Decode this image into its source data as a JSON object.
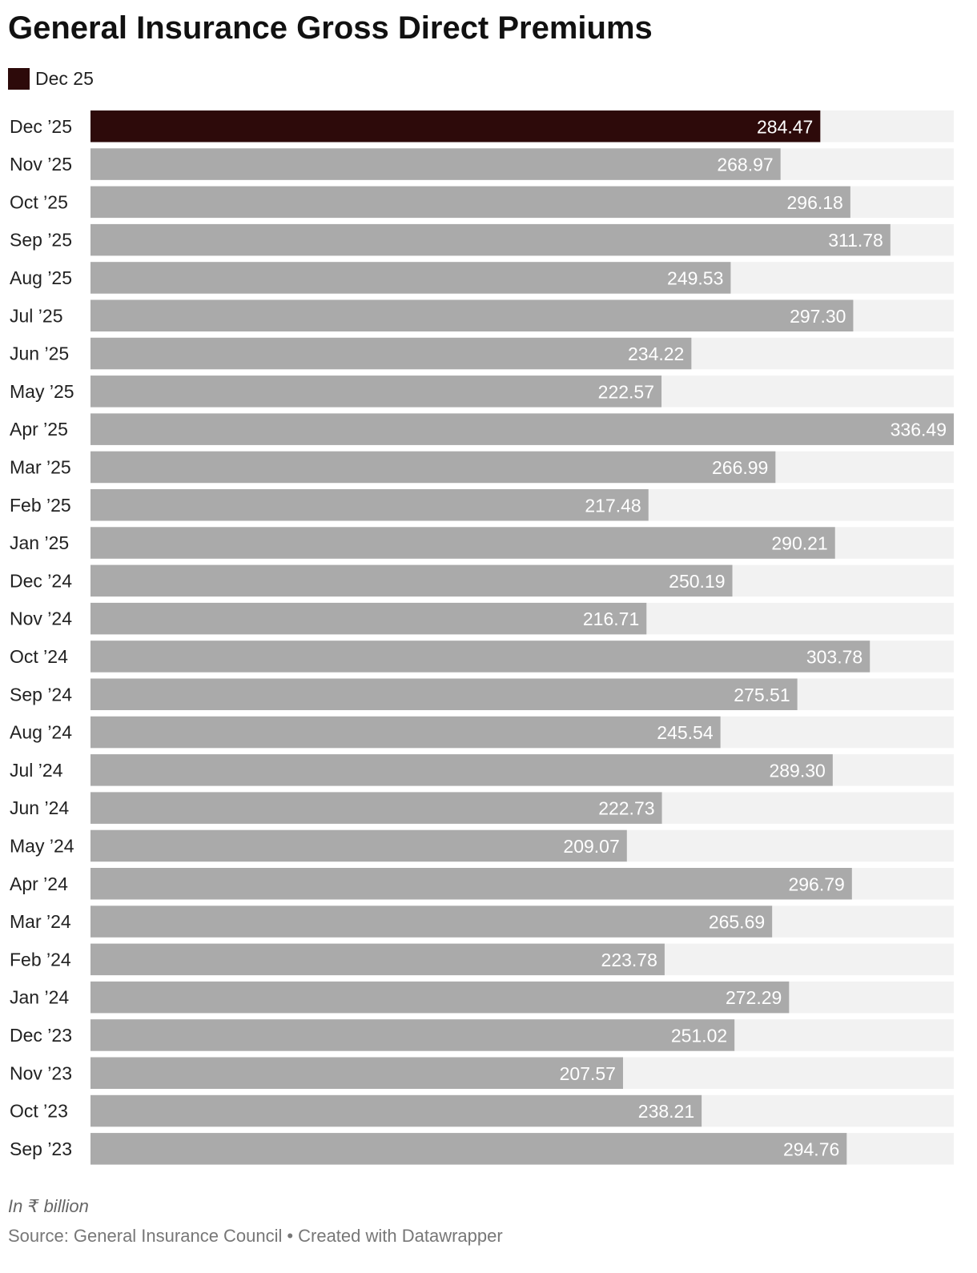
{
  "colors": {
    "highlight": "#2d0a0a",
    "bar": "#aaaaaa",
    "track": "#f2f2f2",
    "value_text": "#ffffff",
    "category_text": "#222222"
  },
  "chart_data": {
    "type": "bar",
    "orientation": "horizontal",
    "title": "General Insurance Gross Direct Premiums",
    "legend": {
      "label": "Dec 25",
      "position": "top-left"
    },
    "highlight_category": "Dec ’25",
    "categories": [
      "Dec ’25",
      "Nov ’25",
      "Oct ’25",
      "Sep ’25",
      "Aug ’25",
      "Jul ’25",
      "Jun ’25",
      "May ’25",
      "Apr ’25",
      "Mar ’25",
      "Feb ’25",
      "Jan ’25",
      "Dec ’24",
      "Nov ’24",
      "Oct ’24",
      "Sep ’24",
      "Aug ’24",
      "Jul ’24",
      "Jun ’24",
      "May ’24",
      "Apr ’24",
      "Mar ’24",
      "Feb ’24",
      "Jan ’24",
      "Dec ’23",
      "Nov ’23",
      "Oct ’23",
      "Sep ’23"
    ],
    "values": [
      284.47,
      268.97,
      296.18,
      311.78,
      249.53,
      297.3,
      234.22,
      222.57,
      336.49,
      266.99,
      217.48,
      290.21,
      250.19,
      216.71,
      303.78,
      275.51,
      245.54,
      289.3,
      222.73,
      209.07,
      296.79,
      265.69,
      223.78,
      272.29,
      251.02,
      207.57,
      238.21,
      294.76
    ],
    "value_labels": [
      "284.47",
      "268.97",
      "296.18",
      "311.78",
      "249.53",
      "297.30",
      "234.22",
      "222.57",
      "336.49",
      "266.99",
      "217.48",
      "290.21",
      "250.19",
      "216.71",
      "303.78",
      "275.51",
      "245.54",
      "289.30",
      "222.73",
      "209.07",
      "296.79",
      "265.69",
      "223.78",
      "272.29",
      "251.02",
      "207.57",
      "238.21",
      "294.76"
    ],
    "xlim": [
      0,
      336.49
    ],
    "grid": false
  },
  "note": "In ₹ billion",
  "footer": {
    "source": "Source: General Insurance Council",
    "separator": "•",
    "credit": "Created with Datawrapper"
  }
}
